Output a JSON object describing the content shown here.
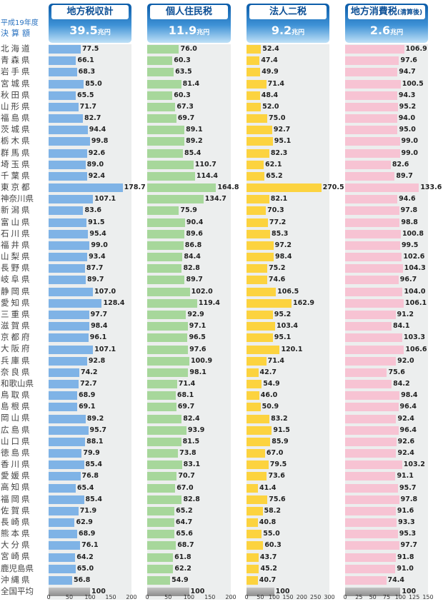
{
  "period_label": {
    "line1": "平成19年度",
    "line2": "決算額"
  },
  "national_average_label": "全国平均",
  "prefectures": [
    "北海道",
    "青森県",
    "岩手県",
    "宮城県",
    "秋田県",
    "山形県",
    "福島県",
    "茨城県",
    "栃木県",
    "群馬県",
    "埼玉県",
    "千葉県",
    "東京都",
    "神奈川県",
    "新潟県",
    "富山県",
    "石川県",
    "福井県",
    "山梨県",
    "長野県",
    "岐阜県",
    "静岡県",
    "愛知県",
    "三重県",
    "滋賀県",
    "京都府",
    "大阪府",
    "兵庫県",
    "奈良県",
    "和歌山県",
    "鳥取県",
    "島根県",
    "岡山県",
    "広島県",
    "山口県",
    "徳島県",
    "香川県",
    "愛媛県",
    "高知県",
    "福岡県",
    "佐賀県",
    "長崎県",
    "熊本県",
    "大分県",
    "宮崎県",
    "鹿児島県",
    "沖縄県"
  ],
  "chart_data": [
    {
      "type": "bar",
      "title": "地方税収計",
      "total": "39.5",
      "unit": "兆円",
      "color": "#7fb3e6",
      "values": [
        77.5,
        66.1,
        68.3,
        85.0,
        65.5,
        71.7,
        82.7,
        94.4,
        99.8,
        92.6,
        89.0,
        92.4,
        178.7,
        107.1,
        83.6,
        91.5,
        95.4,
        99.0,
        93.4,
        87.7,
        89.7,
        107.0,
        128.4,
        97.7,
        98.4,
        96.1,
        107.1,
        92.8,
        74.2,
        72.7,
        68.9,
        69.1,
        89.2,
        95.7,
        88.1,
        79.9,
        85.4,
        76.8,
        65.4,
        85.4,
        71.9,
        62.9,
        68.9,
        76.1,
        64.2,
        65.0,
        56.8
      ],
      "average": 100,
      "xlim": [
        0,
        200
      ],
      "ticks": [
        0,
        50,
        100,
        150,
        200
      ]
    },
    {
      "type": "bar",
      "title": "個人住民税",
      "total": "11.9",
      "unit": "兆円",
      "color": "#a7d79b",
      "values": [
        76.0,
        60.3,
        63.5,
        81.4,
        60.3,
        67.3,
        69.7,
        89.1,
        89.2,
        85.4,
        110.7,
        114.4,
        164.8,
        134.7,
        75.9,
        90.4,
        89.6,
        86.8,
        84.4,
        82.8,
        89.7,
        102.0,
        119.4,
        92.9,
        97.1,
        96.5,
        97.6,
        100.9,
        98.1,
        71.4,
        68.1,
        69.7,
        82.4,
        93.9,
        81.5,
        73.8,
        83.1,
        70.7,
        67.0,
        82.8,
        65.2,
        64.7,
        65.6,
        68.7,
        61.8,
        62.2,
        54.9
      ],
      "average": 100,
      "xlim": [
        0,
        200
      ],
      "ticks": [
        0,
        50,
        100,
        150,
        200
      ]
    },
    {
      "type": "bar",
      "title": "法人二税",
      "total": "9.2",
      "unit": "兆円",
      "color": "#fcd33f",
      "values": [
        52.4,
        47.4,
        49.9,
        71.4,
        48.4,
        52.0,
        75.0,
        92.7,
        95.1,
        82.3,
        62.1,
        65.2,
        270.5,
        82.1,
        70.3,
        77.2,
        85.3,
        97.2,
        98.4,
        75.2,
        74.6,
        106.5,
        162.9,
        95.2,
        103.4,
        95.1,
        120.1,
        71.4,
        42.7,
        54.9,
        46.0,
        50.9,
        83.2,
        91.5,
        85.9,
        67.0,
        79.5,
        73.6,
        41.4,
        75.6,
        58.2,
        40.8,
        55.0,
        60.3,
        43.7,
        45.2,
        40.7
      ],
      "average": 100,
      "xlim": [
        0,
        300
      ],
      "ticks": [
        0,
        50,
        100,
        150,
        200,
        250,
        300
      ]
    },
    {
      "type": "bar",
      "title": "地方消費税",
      "title_suffix": "(清算後)",
      "total": "2.6",
      "unit": "兆円",
      "color": "#f7c3d3",
      "values": [
        106.9,
        97.6,
        94.7,
        100.5,
        94.3,
        95.2,
        94.0,
        95.0,
        99.0,
        99.0,
        82.6,
        89.7,
        133.6,
        94.6,
        97.8,
        98.8,
        100.8,
        99.5,
        102.6,
        104.3,
        96.7,
        104.0,
        106.1,
        91.2,
        84.1,
        103.3,
        106.6,
        92.0,
        75.6,
        84.2,
        98.4,
        96.4,
        92.4,
        96.4,
        92.6,
        92.4,
        103.2,
        91.1,
        95.7,
        97.8,
        91.6,
        93.3,
        95.3,
        97.7,
        91.8,
        91.0,
        74.4
      ],
      "average": 100,
      "xlim": [
        0,
        150
      ],
      "ticks": [
        0,
        25,
        50,
        75,
        100,
        125,
        150
      ]
    }
  ]
}
